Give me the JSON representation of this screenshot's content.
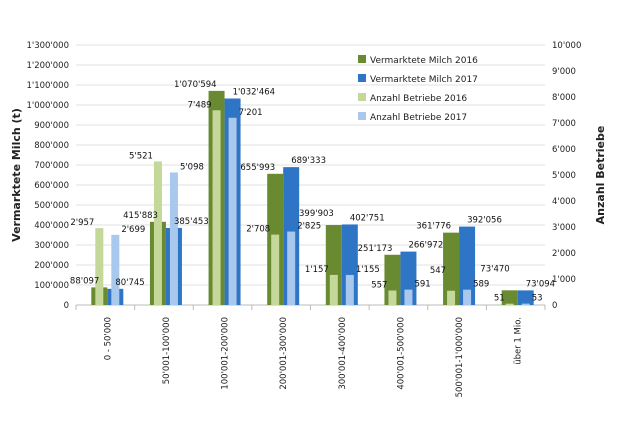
{
  "chart_data": {
    "type": "bar",
    "categories": [
      "0 - 50'000",
      "50'001-100'000",
      "100'001-200'000",
      "200'001-300'000",
      "300'001-400'000",
      "400'001-500'000",
      "500'001-1'000'000",
      "über 1 Mio."
    ],
    "series": [
      {
        "name": "Vermarktete Milch 2016",
        "axis": "left",
        "color": "#6a8a32",
        "values": [
          88097,
          415883,
          1070594,
          655993,
          399903,
          251173,
          361776,
          73470
        ],
        "labels": [
          "88'097",
          "415'883",
          "1'070'594",
          "655'993",
          "399'903",
          "251'173",
          "361'776",
          "73'470"
        ]
      },
      {
        "name": "Vermarktete Milch 2017",
        "axis": "left",
        "color": "#2e75c6",
        "values": [
          80745,
          385453,
          1032464,
          689333,
          402751,
          266972,
          392056,
          73094
        ],
        "labels": [
          "80'745",
          "385'453",
          "1'032'464",
          "689'333",
          "402'751",
          "266'972",
          "392'056",
          "73'094"
        ]
      },
      {
        "name": "Anzahl Betriebe 2016",
        "axis": "right",
        "color": "#c4d89a",
        "values": [
          2957,
          5521,
          7489,
          2708,
          1157,
          557,
          547,
          51
        ],
        "labels": [
          "2'957",
          "5'521",
          "7'489",
          "2'708",
          "1'157",
          "557",
          "547",
          "51"
        ]
      },
      {
        "name": "Anzahl Betriebe 2017",
        "axis": "right",
        "color": "#a9c8ee",
        "values": [
          2699,
          5098,
          7201,
          2825,
          1155,
          591,
          589,
          53
        ],
        "labels": [
          "2'699",
          "5'098",
          "7'201",
          "2'825",
          "1'155",
          "591",
          "589",
          "53"
        ]
      }
    ],
    "ylabel": "Vermarktete Milch (t)",
    "y2label": "Anzahl Betriebe",
    "ylim": [
      0,
      1300000
    ],
    "y2lim": [
      0,
      10000
    ],
    "yticks": [
      "0",
      "100'000",
      "200'000",
      "300'000",
      "400'000",
      "500'000",
      "600'000",
      "700'000",
      "800'000",
      "900'000",
      "1'000'000",
      "1'100'000",
      "1'200'000",
      "1'300'000"
    ],
    "y2ticks": [
      "0",
      "1'000",
      "2'000",
      "3'000",
      "4'000",
      "5'000",
      "6'000",
      "7'000",
      "8'000",
      "9'000",
      "10'000"
    ],
    "grid": true,
    "legend": "top-right"
  }
}
